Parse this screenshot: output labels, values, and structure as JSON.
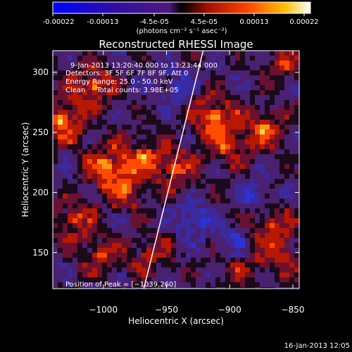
{
  "colorbar": {
    "ticks": [
      "-0.00022",
      "-0.00013",
      "-4.5e-05",
      "4.5e-05",
      "0.00013",
      "0.00022"
    ],
    "unit_label": "(photons cm⁻² s⁻¹ asec⁻²)"
  },
  "chart_data": {
    "type": "heatmap",
    "title": "Reconstructed RHESSI Image",
    "xlabel": "Heliocentric X (arcsec)",
    "ylabel": "Heliocentric Y (arcsec)",
    "xlim": [
      -1040,
      -845
    ],
    "ylim": [
      120,
      318
    ],
    "x_ticks": [
      -1000,
      -950,
      -900,
      -850
    ],
    "x_tick_labels": [
      "−1000",
      "−950",
      "−900",
      "−850"
    ],
    "y_ticks": [
      150,
      200,
      250,
      300
    ],
    "y_tick_labels": [
      "150",
      "200",
      "250",
      "300"
    ],
    "annotations": [
      "9-Jan-2013 13:20:40.000 to 13:23:44.000",
      "Detectors: 3F 5F 6F 7F 8F 9F, Att 0",
      "Energy Range: 25.0 - 50.0 keV",
      "Clean     Total counts: 3.98E+05"
    ],
    "peak_label": "Position of Peak = [−1039,260]",
    "limb_line": [
      [
        -968,
        120
      ],
      [
        -921,
        318
      ]
    ],
    "hot_spots": [
      {
        "x": -1035,
        "y": 262,
        "w": 1.0
      },
      {
        "x": -1010,
        "y": 290,
        "w": 0.8
      },
      {
        "x": -1000,
        "y": 225,
        "w": 0.85
      },
      {
        "x": -985,
        "y": 205,
        "w": 0.75
      },
      {
        "x": -970,
        "y": 232,
        "w": 0.7
      },
      {
        "x": -1025,
        "y": 180,
        "w": 0.65
      },
      {
        "x": -965,
        "y": 150,
        "w": 0.55
      },
      {
        "x": -945,
        "y": 222,
        "w": 0.7
      },
      {
        "x": -915,
        "y": 265,
        "w": 0.95
      },
      {
        "x": -905,
        "y": 240,
        "w": 0.6
      },
      {
        "x": -875,
        "y": 255,
        "w": 0.8
      },
      {
        "x": -860,
        "y": 310,
        "w": 0.55
      },
      {
        "x": -870,
        "y": 175,
        "w": 0.65
      },
      {
        "x": -860,
        "y": 150,
        "w": 0.55
      },
      {
        "x": -895,
        "y": 140,
        "w": 0.45
      },
      {
        "x": -1005,
        "y": 150,
        "w": 0.55
      }
    ],
    "cold_spots": [
      {
        "x": -930,
        "y": 180,
        "w": 0.7
      },
      {
        "x": -900,
        "y": 160,
        "w": 0.6
      },
      {
        "x": -945,
        "y": 290,
        "w": 0.5
      },
      {
        "x": -880,
        "y": 200,
        "w": 0.5
      }
    ]
  },
  "footer": {
    "timestamp": "16-Jan-2013 12:05"
  }
}
